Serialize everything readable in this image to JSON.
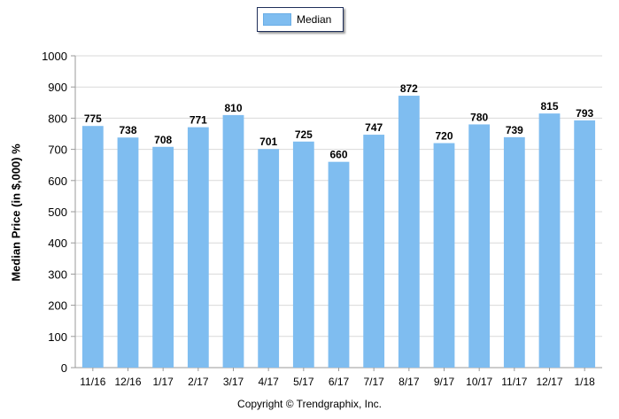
{
  "chart_data": {
    "type": "bar",
    "categories": [
      "11/16",
      "12/16",
      "1/17",
      "2/17",
      "3/17",
      "4/17",
      "5/17",
      "6/17",
      "7/17",
      "8/17",
      "9/17",
      "10/17",
      "11/17",
      "12/17",
      "1/18"
    ],
    "series": [
      {
        "name": "Median",
        "values": [
          775,
          738,
          708,
          771,
          810,
          701,
          725,
          660,
          747,
          872,
          720,
          780,
          739,
          815,
          793
        ]
      }
    ],
    "ylabel": "Median Price (in $,000) %",
    "xlabel": "",
    "ylim": [
      0,
      1000
    ],
    "yticks": [
      0,
      100,
      200,
      300,
      400,
      500,
      600,
      700,
      800,
      900,
      1000
    ],
    "grid": true,
    "data_labels": true,
    "legend_position": "top-center",
    "bar_color": "#7fbdf0",
    "credit": "Copyright © Trendgraphix, Inc."
  }
}
